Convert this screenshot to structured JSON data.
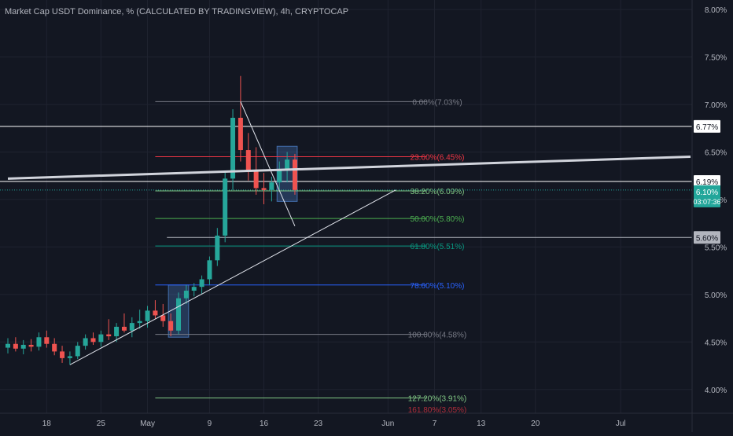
{
  "title": "Market Cap USDT Dominance, % (CALCULATED BY TRADINGVIEW), 4h, CRYPTOCAP",
  "colors": {
    "background": "#131722",
    "grid": "#1f2330",
    "axis_text": "#b2b5be",
    "candle_up": "#26a69a",
    "candle_down": "#ef5350",
    "price_badge": "#22a69a"
  },
  "chart_data": {
    "type": "candlestick",
    "y_unit": "%",
    "ylim": [
      3.75,
      8.1
    ],
    "y_ticks": [
      "8.00%",
      "7.50%",
      "7.00%",
      "6.50%",
      "6.00%",
      "5.50%",
      "5.00%",
      "4.50%",
      "4.00%"
    ],
    "y_tick_values": [
      8.0,
      7.5,
      7.0,
      6.5,
      6.0,
      5.5,
      5.0,
      4.5,
      4.0
    ],
    "x_ticks": [
      "18",
      "25",
      "May",
      "9",
      "16",
      "23",
      "Jun",
      "7",
      "13",
      "20",
      "Jul"
    ],
    "x_tick_days": [
      -13,
      -6,
      0,
      8,
      15,
      22,
      31,
      37,
      43,
      50,
      61
    ],
    "x_range_days": [
      -18,
      70
    ],
    "candles": [
      {
        "d": -18,
        "o": 4.44,
        "h": 4.54,
        "l": 4.38,
        "c": 4.48
      },
      {
        "d": -17,
        "o": 4.48,
        "h": 4.55,
        "l": 4.4,
        "c": 4.43
      },
      {
        "d": -16,
        "o": 4.43,
        "h": 4.52,
        "l": 4.37,
        "c": 4.47
      },
      {
        "d": -15,
        "o": 4.47,
        "h": 4.53,
        "l": 4.4,
        "c": 4.45
      },
      {
        "d": -14,
        "o": 4.45,
        "h": 4.6,
        "l": 4.41,
        "c": 4.55
      },
      {
        "d": -13,
        "o": 4.55,
        "h": 4.62,
        "l": 4.44,
        "c": 4.48
      },
      {
        "d": -12,
        "o": 4.48,
        "h": 4.54,
        "l": 4.36,
        "c": 4.4
      },
      {
        "d": -11,
        "o": 4.4,
        "h": 4.46,
        "l": 4.28,
        "c": 4.33
      },
      {
        "d": -10,
        "o": 4.33,
        "h": 4.4,
        "l": 4.26,
        "c": 4.35
      },
      {
        "d": -9,
        "o": 4.35,
        "h": 4.5,
        "l": 4.32,
        "c": 4.46
      },
      {
        "d": -8,
        "o": 4.46,
        "h": 4.58,
        "l": 4.42,
        "c": 4.54
      },
      {
        "d": -7,
        "o": 4.54,
        "h": 4.6,
        "l": 4.47,
        "c": 4.5
      },
      {
        "d": -6,
        "o": 4.5,
        "h": 4.62,
        "l": 4.45,
        "c": 4.58
      },
      {
        "d": -5,
        "o": 4.58,
        "h": 4.74,
        "l": 4.52,
        "c": 4.56
      },
      {
        "d": -4,
        "o": 4.56,
        "h": 4.7,
        "l": 4.5,
        "c": 4.66
      },
      {
        "d": -3,
        "o": 4.66,
        "h": 4.8,
        "l": 4.6,
        "c": 4.62
      },
      {
        "d": -2,
        "o": 4.62,
        "h": 4.76,
        "l": 4.55,
        "c": 4.7
      },
      {
        "d": -1,
        "o": 4.7,
        "h": 4.84,
        "l": 4.64,
        "c": 4.72
      },
      {
        "d": 0,
        "o": 4.72,
        "h": 4.88,
        "l": 4.65,
        "c": 4.83
      },
      {
        "d": 1,
        "o": 4.83,
        "h": 4.94,
        "l": 4.74,
        "c": 4.78
      },
      {
        "d": 2,
        "o": 4.78,
        "h": 4.9,
        "l": 4.66,
        "c": 4.72
      },
      {
        "d": 3,
        "o": 4.72,
        "h": 4.8,
        "l": 4.56,
        "c": 4.62
      },
      {
        "d": 4,
        "o": 4.62,
        "h": 5.02,
        "l": 4.58,
        "c": 4.96
      },
      {
        "d": 5,
        "o": 4.96,
        "h": 5.1,
        "l": 4.9,
        "c": 5.04
      },
      {
        "d": 6,
        "o": 5.04,
        "h": 5.12,
        "l": 4.98,
        "c": 5.08
      },
      {
        "d": 7,
        "o": 5.08,
        "h": 5.2,
        "l": 5.0,
        "c": 5.16
      },
      {
        "d": 8,
        "o": 5.16,
        "h": 5.4,
        "l": 5.1,
        "c": 5.36
      },
      {
        "d": 9,
        "o": 5.36,
        "h": 5.7,
        "l": 5.3,
        "c": 5.62
      },
      {
        "d": 10,
        "o": 5.62,
        "h": 6.3,
        "l": 5.55,
        "c": 6.22
      },
      {
        "d": 11,
        "o": 6.22,
        "h": 6.95,
        "l": 6.1,
        "c": 6.86
      },
      {
        "d": 12,
        "o": 6.86,
        "h": 7.3,
        "l": 6.4,
        "c": 6.52
      },
      {
        "d": 13,
        "o": 6.52,
        "h": 6.7,
        "l": 6.2,
        "c": 6.3
      },
      {
        "d": 14,
        "o": 6.3,
        "h": 6.55,
        "l": 6.05,
        "c": 6.12
      },
      {
        "d": 15,
        "o": 6.12,
        "h": 6.28,
        "l": 5.95,
        "c": 6.1
      },
      {
        "d": 16,
        "o": 6.1,
        "h": 6.24,
        "l": 5.98,
        "c": 6.18
      },
      {
        "d": 17,
        "o": 6.18,
        "h": 6.4,
        "l": 6.1,
        "c": 6.32
      },
      {
        "d": 18,
        "o": 6.32,
        "h": 6.5,
        "l": 6.18,
        "c": 6.42
      },
      {
        "d": 19,
        "o": 6.42,
        "h": 6.48,
        "l": 6.05,
        "c": 6.1
      }
    ],
    "price_lines": [
      {
        "label": "6.77%",
        "value": 6.77
      },
      {
        "label": "6.19%",
        "value": 6.19
      },
      {
        "label": "5.60%",
        "value": 5.6
      }
    ],
    "current_price": {
      "label": "6.10%",
      "countdown": "03:07:36",
      "value": 6.1
    },
    "fibonacci": [
      {
        "label": "0.00%(7.03%)",
        "value": 7.03,
        "color": "#787b86"
      },
      {
        "label": "23.60%(6.45%)",
        "value": 6.45,
        "color": "#f23645"
      },
      {
        "label": "38.20%(6.09%)",
        "value": 6.09,
        "color": "#81c784"
      },
      {
        "label": "50.00%(5.80%)",
        "value": 5.8,
        "color": "#4caf50"
      },
      {
        "label": "61.80%(5.51%)",
        "value": 5.51,
        "color": "#089981"
      },
      {
        "label": "78.60%(5.10%)",
        "value": 5.1,
        "color": "#2962ff"
      },
      {
        "label": "100.00%(4.58%)",
        "value": 4.58,
        "color": "#787b86"
      },
      {
        "label": "127.20%(3.91%)",
        "value": 3.91,
        "color": "#81c784"
      },
      {
        "label": "161.80%(3.05%)",
        "value": 3.05,
        "color": "#f23645"
      }
    ],
    "trend_lines": [
      {
        "name": "support",
        "from": {
          "d": -10,
          "v": 4.26
        },
        "to": {
          "d": 32,
          "v": 6.1
        }
      },
      {
        "name": "resistance",
        "from": {
          "d": 12,
          "v": 7.03
        },
        "to": {
          "d": 19,
          "v": 5.72
        }
      },
      {
        "name": "long-channel",
        "from": {
          "d": -18,
          "v": 6.22
        },
        "to": {
          "d": 70,
          "v": 6.45
        }
      }
    ],
    "rectangles": [
      {
        "name": "box-may",
        "d1": 3,
        "d2": 5,
        "v1": 5.1,
        "v2": 4.55
      },
      {
        "name": "box-flag",
        "d1": 17,
        "d2": 19,
        "v1": 6.56,
        "v2": 5.98
      }
    ]
  }
}
